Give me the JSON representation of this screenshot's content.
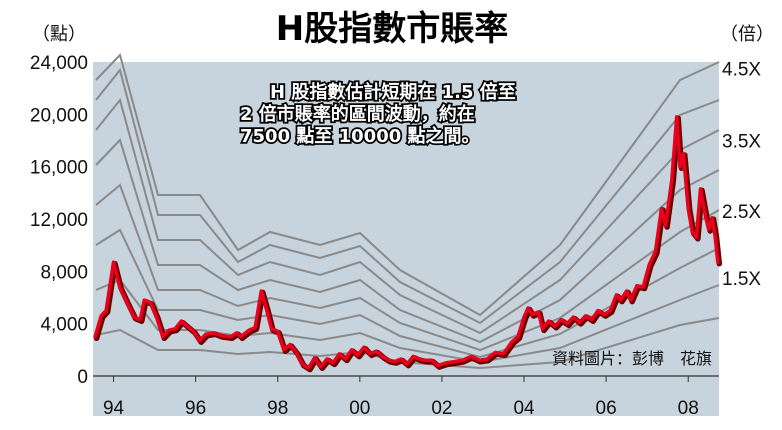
{
  "chart_data": {
    "type": "line",
    "title": "H股指數市賬率",
    "left_unit": "（點）",
    "right_unit": "（倍）",
    "y_ticks": [
      "0",
      "4,000",
      "8,000",
      "12,000",
      "16,000",
      "20,000",
      "24,000"
    ],
    "y_tick_values": [
      0,
      4000,
      8000,
      12000,
      16000,
      20000,
      24000
    ],
    "ylim": [
      0,
      24000
    ],
    "x_ticks": [
      "94",
      "96",
      "98",
      "00",
      "02",
      "04",
      "06",
      "08"
    ],
    "x_tick_values": [
      1994,
      1996,
      1998,
      2000,
      2002,
      2004,
      2006,
      2008
    ],
    "xlim": [
      1993.5,
      2008.75
    ],
    "right_ticks": [
      {
        "label": "4.5X",
        "y": 23500
      },
      {
        "label": "3.5X",
        "y": 18000
      },
      {
        "label": "2.5X",
        "y": 12600
      },
      {
        "label": "1.5X",
        "y": 7500
      }
    ],
    "annotation": [
      "H 股指數估計短期在 1.5 倍至",
      "2 倍市賬率的區間波動，約在",
      "7500 點至 10000 點之間。"
    ],
    "source": "資料圖片：彭博　花旗",
    "grid": false,
    "series": [
      {
        "color": "#e8001c",
        "points": [
          [
            1993.55,
            3000
          ],
          [
            1993.7,
            4600
          ],
          [
            1993.82,
            5000
          ],
          [
            1994.0,
            8700
          ],
          [
            1994.15,
            6800
          ],
          [
            1994.3,
            5800
          ],
          [
            1994.5,
            4500
          ],
          [
            1994.65,
            4300
          ],
          [
            1994.75,
            5800
          ],
          [
            1994.9,
            5600
          ],
          [
            1995.05,
            4500
          ],
          [
            1995.2,
            3000
          ],
          [
            1995.35,
            3500
          ],
          [
            1995.5,
            3600
          ],
          [
            1995.65,
            4200
          ],
          [
            1995.8,
            3800
          ],
          [
            1995.95,
            3400
          ],
          [
            1996.1,
            2700
          ],
          [
            1996.25,
            3200
          ],
          [
            1996.45,
            3300
          ],
          [
            1996.6,
            3100
          ],
          [
            1996.85,
            3000
          ],
          [
            1997.0,
            3300
          ],
          [
            1997.1,
            3000
          ],
          [
            1997.3,
            3500
          ],
          [
            1997.45,
            3700
          ],
          [
            1997.6,
            6500
          ],
          [
            1997.72,
            5200
          ],
          [
            1997.85,
            3600
          ],
          [
            1998.0,
            3400
          ],
          [
            1998.15,
            2000
          ],
          [
            1998.3,
            2400
          ],
          [
            1998.45,
            1800
          ],
          [
            1998.6,
            900
          ],
          [
            1998.75,
            600
          ],
          [
            1998.9,
            1400
          ],
          [
            1999.05,
            700
          ],
          [
            1999.2,
            1300
          ],
          [
            1999.35,
            1000
          ],
          [
            1999.5,
            1700
          ],
          [
            1999.65,
            1300
          ],
          [
            1999.8,
            2000
          ],
          [
            1999.95,
            1600
          ],
          [
            2000.1,
            2200
          ],
          [
            2000.25,
            1700
          ],
          [
            2000.4,
            1900
          ],
          [
            2000.55,
            1500
          ],
          [
            2000.7,
            1200
          ],
          [
            2000.85,
            1100
          ],
          [
            2001.0,
            1300
          ],
          [
            2001.15,
            900
          ],
          [
            2001.3,
            1500
          ],
          [
            2001.45,
            1300
          ],
          [
            2001.6,
            1200
          ],
          [
            2001.75,
            1200
          ],
          [
            2001.9,
            800
          ],
          [
            2002.1,
            1000
          ],
          [
            2002.3,
            1100
          ],
          [
            2002.5,
            1200
          ],
          [
            2002.7,
            1500
          ],
          [
            2002.9,
            1200
          ],
          [
            2003.1,
            1300
          ],
          [
            2003.3,
            1800
          ],
          [
            2003.5,
            1700
          ],
          [
            2003.7,
            2600
          ],
          [
            2003.85,
            3000
          ],
          [
            2004.0,
            4500
          ],
          [
            2004.1,
            5200
          ],
          [
            2004.2,
            4700
          ],
          [
            2004.35,
            4900
          ],
          [
            2004.45,
            3600
          ],
          [
            2004.6,
            4200
          ],
          [
            2004.75,
            3800
          ],
          [
            2004.9,
            4300
          ],
          [
            2005.05,
            4000
          ],
          [
            2005.2,
            4500
          ],
          [
            2005.35,
            4100
          ],
          [
            2005.5,
            4600
          ],
          [
            2005.65,
            4300
          ],
          [
            2005.8,
            5000
          ],
          [
            2005.95,
            4700
          ],
          [
            2006.1,
            5000
          ],
          [
            2006.25,
            6200
          ],
          [
            2006.35,
            5800
          ],
          [
            2006.5,
            6500
          ],
          [
            2006.6,
            5800
          ],
          [
            2006.75,
            6900
          ],
          [
            2006.9,
            6800
          ],
          [
            2007.05,
            8500
          ],
          [
            2007.2,
            9500
          ],
          [
            2007.35,
            12800
          ],
          [
            2007.45,
            11500
          ],
          [
            2007.6,
            15000
          ],
          [
            2007.72,
            19800
          ],
          [
            2007.8,
            16000
          ],
          [
            2007.88,
            17000
          ],
          [
            2008.0,
            12800
          ],
          [
            2008.1,
            11000
          ],
          [
            2008.2,
            10600
          ],
          [
            2008.3,
            14300
          ],
          [
            2008.42,
            12200
          ],
          [
            2008.5,
            11200
          ],
          [
            2008.58,
            12100
          ],
          [
            2008.65,
            10800
          ],
          [
            2008.72,
            8700
          ]
        ]
      }
    ]
  }
}
